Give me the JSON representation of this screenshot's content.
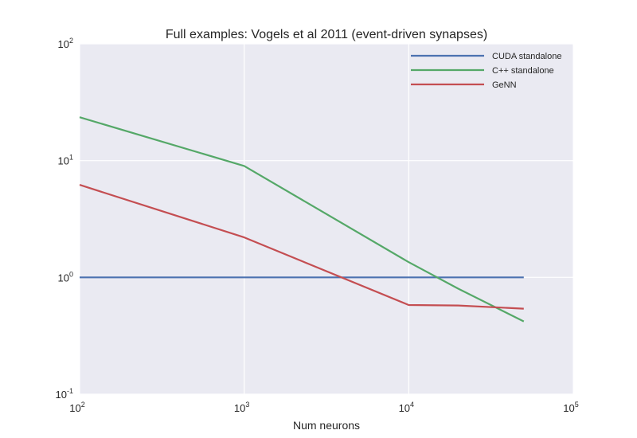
{
  "chart_data": {
    "type": "line",
    "title": "Full examples: Vogels et al 2011 (event-driven synapses)",
    "xlabel": "Num neurons",
    "ylabel": "",
    "xscale": "log",
    "yscale": "log",
    "xlim": [
      100,
      100000
    ],
    "ylim": [
      0.1,
      100
    ],
    "grid": true,
    "legend_position": "top-right",
    "x_ticks": [
      {
        "base": "10",
        "exp": "2",
        "value": 100
      },
      {
        "base": "10",
        "exp": "3",
        "value": 1000
      },
      {
        "base": "10",
        "exp": "4",
        "value": 10000
      },
      {
        "base": "10",
        "exp": "5",
        "value": 100000
      }
    ],
    "y_ticks": [
      {
        "base": "10",
        "exp": "-1",
        "value": 0.1
      },
      {
        "base": "10",
        "exp": "0",
        "value": 1
      },
      {
        "base": "10",
        "exp": "1",
        "value": 10
      },
      {
        "base": "10",
        "exp": "2",
        "value": 100
      }
    ],
    "series": [
      {
        "name": "CUDA standalone",
        "color": "#4c72b0",
        "x": [
          100,
          1000,
          10000,
          20000,
          50000
        ],
        "y": [
          1,
          1,
          1,
          1,
          1
        ]
      },
      {
        "name": "C++ standalone",
        "color": "#55a868",
        "x": [
          100,
          1000,
          10000,
          20000,
          50000
        ],
        "y": [
          23.5,
          9.0,
          1.35,
          0.8,
          0.42
        ]
      },
      {
        "name": "GeNN",
        "color": "#c44e52",
        "x": [
          100,
          1000,
          10000,
          20000,
          50000
        ],
        "y": [
          6.2,
          2.2,
          0.58,
          0.575,
          0.54
        ]
      }
    ]
  }
}
